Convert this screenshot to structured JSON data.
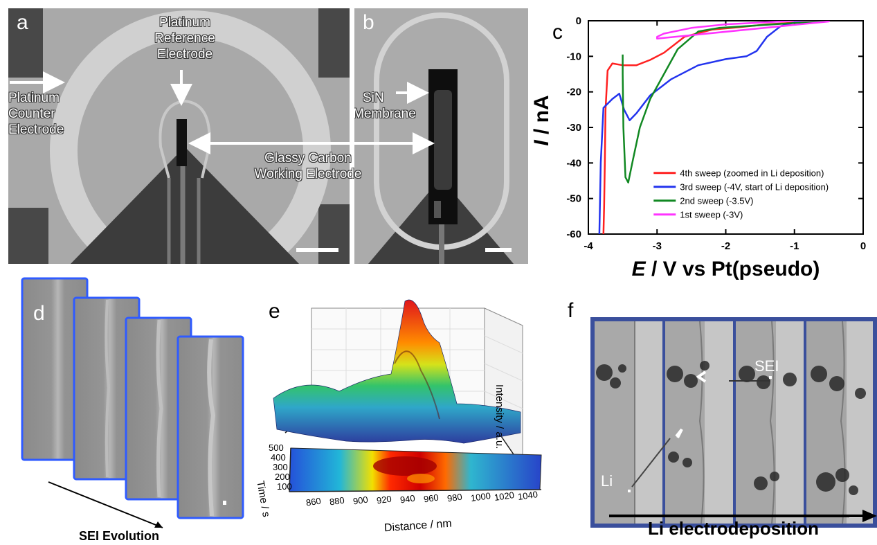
{
  "panels": {
    "a": {
      "letter": "a",
      "label_pt_ref": [
        "Platinum",
        "Reference",
        "Electrode"
      ],
      "label_pt_counter": [
        "Platinum",
        "Counter",
        "Electrode"
      ]
    },
    "b": {
      "letter": "b",
      "label_sin": [
        "SiN",
        "Membrane"
      ]
    },
    "ab_shared": {
      "label_gc": [
        "Glassy Carbon",
        "Working Electrode"
      ]
    },
    "c": {
      "letter": "c"
    },
    "d": {
      "letter": "d",
      "caption": "SEI Evolution"
    },
    "e": {
      "letter": "e",
      "z_label": "Intensity  /  a.u.",
      "x_label": "Distance  /  nm",
      "y_label": "Time  /  s",
      "x_ticks": [
        "860",
        "880",
        "900",
        "920",
        "940",
        "960",
        "980",
        "1000",
        "1020",
        "1040"
      ],
      "y_ticks": [
        "500",
        "400",
        "300",
        "200",
        "100"
      ]
    },
    "f": {
      "letter": "f",
      "label_sei": "SEI",
      "label_li": "Li",
      "caption": "Li electrodeposition"
    }
  },
  "chart_data": {
    "type": "line",
    "xlabel_italic": "E",
    "xlabel_rest": " / V vs Pt(pseudo)",
    "ylabel_italic": "I",
    "ylabel_rest": " / nA",
    "xlim": [
      -4,
      0
    ],
    "ylim": [
      -60,
      0
    ],
    "x_ticks": [
      -4,
      -3,
      -2,
      -1,
      0
    ],
    "y_ticks": [
      0,
      -10,
      -20,
      -30,
      -40,
      -50,
      -60
    ],
    "legend_position": "bottom-right",
    "series": [
      {
        "name": "4th sweep (zoomed in Li deposition)",
        "color": "#ff2020",
        "x": [
          -0.5,
          -0.8,
          -1.0,
          -1.4,
          -1.8,
          -2.2,
          -2.6,
          -2.9,
          -3.1,
          -3.3,
          -3.5,
          -3.65,
          -3.72,
          -3.75,
          -3.76,
          -3.77,
          -3.78
        ],
        "y": [
          0,
          -0.3,
          -0.5,
          -1.0,
          -1.8,
          -2.5,
          -4.5,
          -9.0,
          -11.0,
          -12.5,
          -12.5,
          -12.0,
          -14.0,
          -25.0,
          -40.0,
          -52.0,
          -60.0
        ]
      },
      {
        "name": "3rd sweep (-4V, start of Li deposition)",
        "color": "#2233ee",
        "x": [
          -0.5,
          -0.9,
          -1.2,
          -1.4,
          -1.55,
          -1.7,
          -2.0,
          -2.4,
          -2.8,
          -3.1,
          -3.3,
          -3.4,
          -3.48,
          -3.55,
          -3.65,
          -3.78,
          -3.82,
          -3.84
        ],
        "y": [
          0.5,
          0,
          -1.5,
          -4.5,
          -8.5,
          -10.0,
          -10.8,
          -12.5,
          -16.5,
          -21.0,
          -26.0,
          -28.0,
          -25.0,
          -20.5,
          -22.0,
          -24.5,
          -40.0,
          -60.0
        ]
      },
      {
        "name": "2nd sweep (-3.5V)",
        "color": "#118822",
        "x": [
          -0.5,
          -0.9,
          -1.3,
          -1.7,
          -2.1,
          -2.4,
          -2.7,
          -2.9,
          -3.1,
          -3.25,
          -3.35,
          -3.42,
          -3.46,
          -3.49,
          -3.5,
          -3.5
        ],
        "y": [
          0,
          -0.5,
          -1.0,
          -1.5,
          -2.0,
          -3.0,
          -8.0,
          -15.0,
          -22.0,
          -30.0,
          -39.0,
          -45.5,
          -44.0,
          -30.0,
          -15.0,
          -9.5
        ]
      },
      {
        "name": "1st sweep (-3V)",
        "color": "#ff33ff",
        "x": [
          -0.5,
          -1.0,
          -1.5,
          -2.0,
          -2.5,
          -2.9,
          -3.0,
          -3.0,
          -0.5,
          -0.5
        ],
        "y": [
          0.3,
          0,
          -0.5,
          -1.0,
          -2.0,
          -3.6,
          -4.5,
          -5.0,
          -0.2,
          3.0
        ]
      }
    ]
  }
}
